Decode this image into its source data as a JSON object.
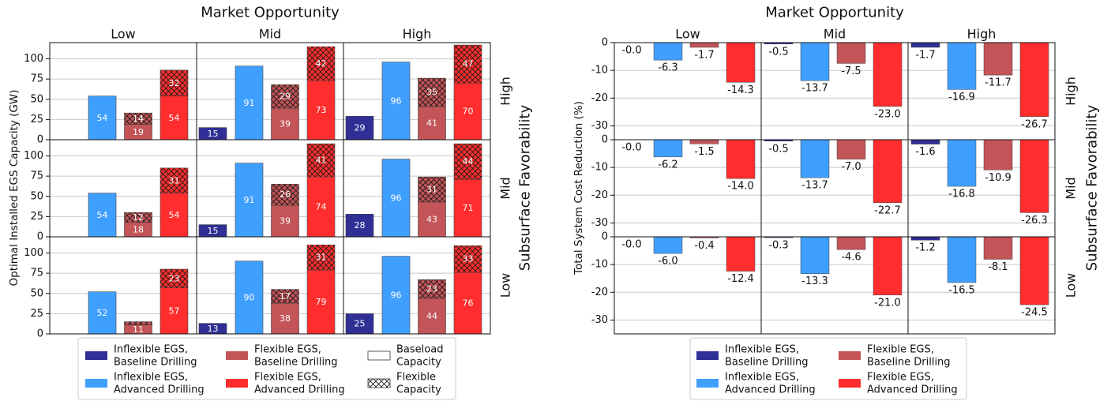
{
  "colors": {
    "inflexible_baseline": "#2f2f96",
    "inflexible_advanced": "#3f9ffe",
    "flexible_baseline": "#c35457",
    "flexible_advanced": "#ff2d2d",
    "grid": "#c8c8c8"
  },
  "chart_data": [
    {
      "type": "bar",
      "title": "Market Opportunity",
      "ylabel": "Optimal Installed EGS Capacity (GW)",
      "right_label": "Subsurface Favorability",
      "columns": [
        "Low",
        "Mid",
        "High"
      ],
      "rows": [
        "High",
        "Mid",
        "Low"
      ],
      "ylim": [
        0,
        120
      ],
      "yticks": [
        0,
        25,
        50,
        75,
        100
      ],
      "grid": true,
      "stacked": true,
      "series": [
        {
          "name": "Inflexible EGS, Baseline Drilling",
          "baseload": [
            [
              0,
              15,
              29
            ],
            [
              0,
              15,
              28
            ],
            [
              0,
              13,
              25
            ]
          ],
          "flexible": [
            [
              0,
              0,
              0
            ],
            [
              0,
              0,
              0
            ],
            [
              0,
              0,
              0
            ]
          ]
        },
        {
          "name": "Inflexible EGS, Advanced Drilling",
          "baseload": [
            [
              54,
              91,
              96
            ],
            [
              54,
              91,
              96
            ],
            [
              52,
              90,
              96
            ]
          ],
          "flexible": [
            [
              0,
              0,
              0
            ],
            [
              0,
              0,
              0
            ],
            [
              0,
              0,
              0
            ]
          ]
        },
        {
          "name": "Flexible EGS, Baseline Drilling",
          "baseload": [
            [
              19,
              39,
              41
            ],
            [
              18,
              39,
              43
            ],
            [
              11,
              38,
              44
            ]
          ],
          "flexible": [
            [
              14,
              29,
              35
            ],
            [
              12,
              26,
              31
            ],
            [
              4,
              17,
              23
            ]
          ]
        },
        {
          "name": "Flexible EGS, Advanced Drilling",
          "baseload": [
            [
              54,
              73,
              70
            ],
            [
              54,
              74,
              71
            ],
            [
              57,
              79,
              76
            ]
          ],
          "flexible": [
            [
              32,
              42,
              47
            ],
            [
              31,
              41,
              44
            ],
            [
              23,
              31,
              33
            ]
          ]
        }
      ],
      "flex_labels": [
        [
          [
            "",
            "",
            ""
          ],
          [
            "",
            "",
            ""
          ],
          [
            "",
            "",
            ""
          ]
        ],
        [
          [
            "",
            "",
            ""
          ],
          [
            "",
            "",
            ""
          ],
          [
            "",
            "",
            ""
          ]
        ],
        [
          [
            "14",
            "29",
            "35"
          ],
          [
            "12",
            "26",
            "31"
          ],
          [
            "",
            "17",
            "23"
          ]
        ],
        [
          [
            "32",
            "42",
            "47"
          ],
          [
            "31",
            "41",
            "44"
          ],
          [
            "23",
            "31",
            "33"
          ]
        ]
      ],
      "legend": {
        "position": "bottom",
        "entries": [
          "Inflexible EGS,\nBaseline Drilling",
          "Flexible EGS,\nBaseline Drilling",
          "Baseload\nCapacity",
          "Inflexible EGS,\nAdvanced Drilling",
          "Flexible EGS,\nAdvanced Drilling",
          "Flexible\nCapacity"
        ]
      }
    },
    {
      "type": "bar",
      "title": "Market Opportunity",
      "ylabel": "Total System Cost Reduction (%)",
      "right_label": "Subsurface Favorability",
      "columns": [
        "Low",
        "Mid",
        "High"
      ],
      "rows": [
        "High",
        "Mid",
        "Low"
      ],
      "ylim": [
        -35,
        0
      ],
      "yticks": [
        0,
        -10,
        -20,
        -30
      ],
      "grid": true,
      "series": [
        {
          "name": "Inflexible EGS, Baseline Drilling",
          "values": [
            [
              -0.0,
              -0.5,
              -1.7
            ],
            [
              -0.0,
              -0.5,
              -1.6
            ],
            [
              -0.0,
              -0.3,
              -1.2
            ]
          ]
        },
        {
          "name": "Inflexible EGS, Advanced Drilling",
          "values": [
            [
              -6.3,
              -13.7,
              -16.9
            ],
            [
              -6.2,
              -13.7,
              -16.8
            ],
            [
              -6.0,
              -13.3,
              -16.5
            ]
          ]
        },
        {
          "name": "Flexible EGS, Baseline Drilling",
          "values": [
            [
              -1.7,
              -7.5,
              -11.7
            ],
            [
              -1.5,
              -7.0,
              -10.9
            ],
            [
              -0.4,
              -4.6,
              -8.1
            ]
          ]
        },
        {
          "name": "Flexible EGS, Advanced Drilling",
          "values": [
            [
              -14.3,
              -23.0,
              -26.7
            ],
            [
              -14.0,
              -22.7,
              -26.3
            ],
            [
              -12.4,
              -21.0,
              -24.5
            ]
          ]
        }
      ],
      "legend": {
        "position": "bottom",
        "entries": [
          "Inflexible EGS,\nBaseline Drilling",
          "Flexible EGS,\nBaseline Drilling",
          "Inflexible EGS,\nAdvanced Drilling",
          "Flexible EGS,\nAdvanced Drilling"
        ]
      }
    }
  ]
}
